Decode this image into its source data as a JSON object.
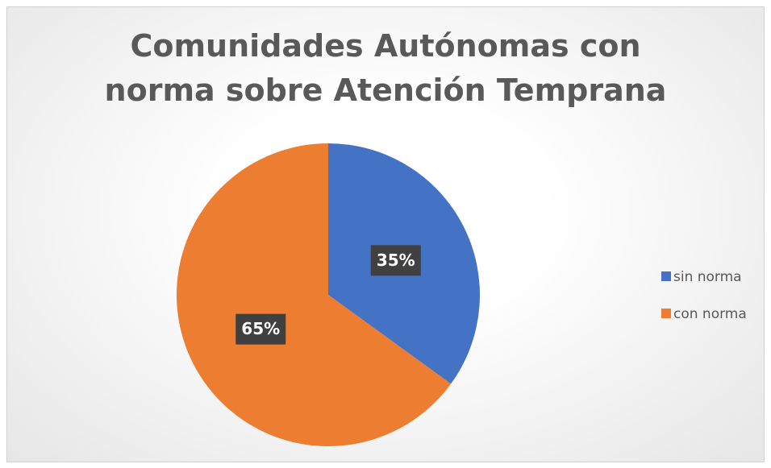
{
  "chart_data": {
    "type": "pie",
    "title": "Comunidades Autónomas con norma sobre Atención Temprana",
    "categories": [
      "sin norma",
      "con norma"
    ],
    "values": [
      35,
      65
    ],
    "value_labels": [
      "35%",
      "65%"
    ],
    "colors": [
      "#4472c4",
      "#ed7d31"
    ],
    "legend": "right"
  }
}
